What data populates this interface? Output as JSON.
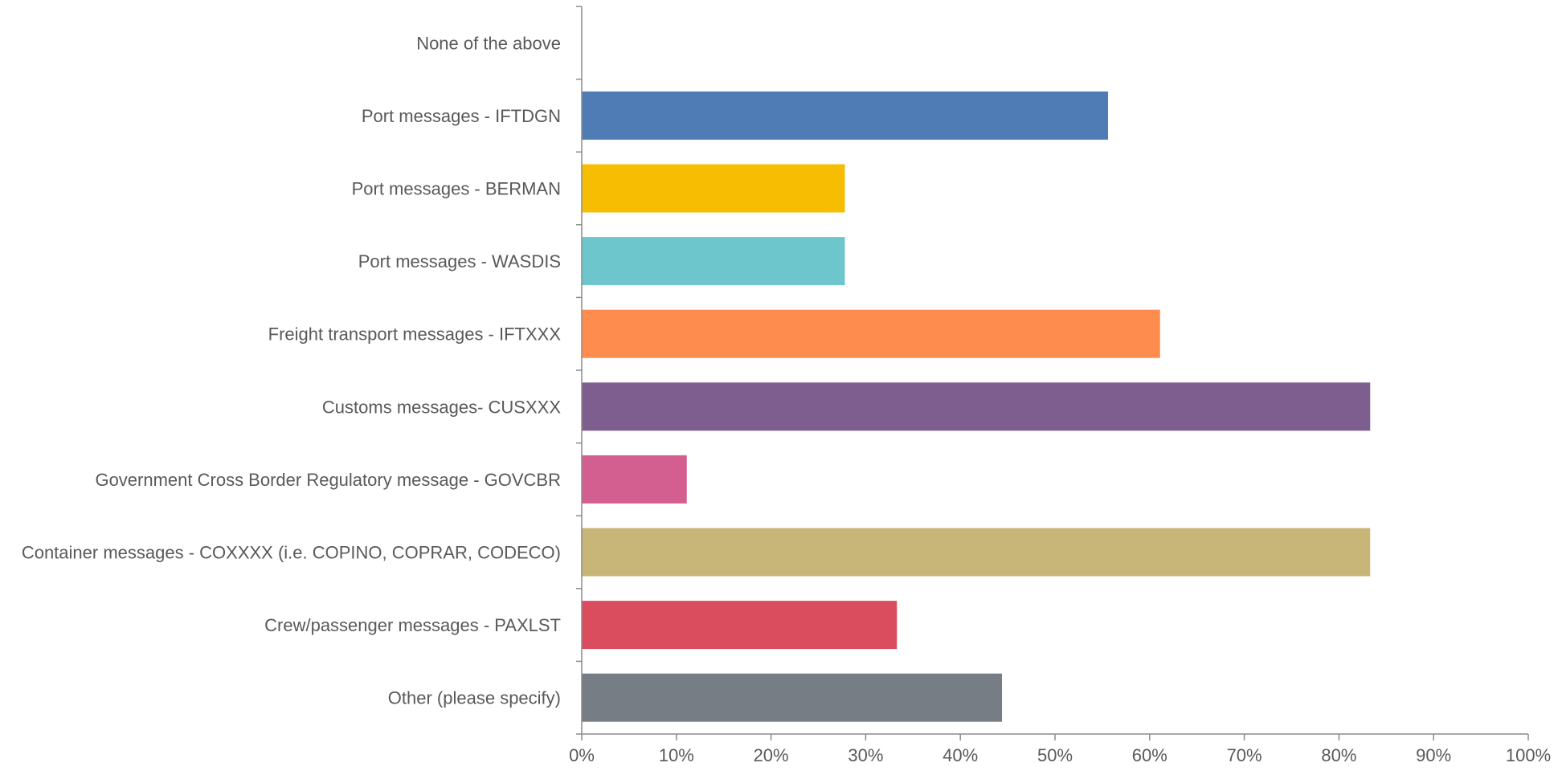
{
  "chart_data": {
    "type": "bar",
    "orientation": "horizontal",
    "categories": [
      "None of the above",
      "Port messages - IFTDGN",
      "Port messages - BERMAN",
      "Port messages - WASDIS",
      "Freight transport messages - IFTXXX",
      "Customs messages- CUSXXX",
      "Government Cross Border Regulatory message - GOVCBR",
      "Container messages - COXXXX (i.e. COPINO, COPRAR, CODECO)",
      "Crew/passenger messages - PAXLST",
      "Other (please specify)"
    ],
    "values": [
      0,
      55.6,
      27.8,
      27.8,
      61.1,
      83.3,
      11.1,
      83.3,
      33.3,
      44.4
    ],
    "colors": [
      "#4f7cb5",
      "#4f7cb5",
      "#f7bd02",
      "#6cc6cc",
      "#fe8c4f",
      "#7d5e8e",
      "#d35e90",
      "#c7b677",
      "#d94d5e",
      "#767d85"
    ],
    "xlim": [
      0,
      100
    ],
    "x_ticks": [
      "0%",
      "10%",
      "20%",
      "30%",
      "40%",
      "50%",
      "60%",
      "70%",
      "80%",
      "90%",
      "100%"
    ],
    "title": "",
    "xlabel": "",
    "ylabel": "",
    "grid": false,
    "legend": "none"
  }
}
